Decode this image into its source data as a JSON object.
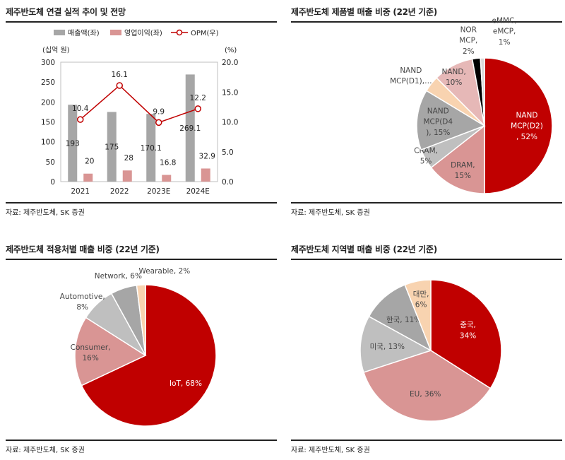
{
  "source_label": "자료: 제주반도체, SK 증권",
  "colors": {
    "bar_gray": "#a6a6a6",
    "bar_pink": "#d99594",
    "line_red": "#c00000",
    "red": "#c00000",
    "pink": "#d99594",
    "gray_dark": "#a6a6a6",
    "gray_light": "#bfbfbf",
    "peach": "#f8d3b0",
    "rose": "#e6b8b7",
    "black": "#000000",
    "light": "#d9d9d9"
  },
  "chart_data": [
    {
      "type": "bar",
      "title": "제주반도체 연결 실적 추이 및 전망",
      "categories": [
        "2021",
        "2022",
        "2023E",
        "2024E"
      ],
      "series": [
        {
          "name": "매출액(좌)",
          "values": [
            193,
            175,
            170.1,
            269.1
          ],
          "axis": "left",
          "labels": [
            "193",
            "175",
            "170.1",
            "269.1"
          ]
        },
        {
          "name": "영업이익(좌)",
          "values": [
            20,
            28,
            16.8,
            32.9
          ],
          "axis": "left",
          "labels": [
            "20",
            "28",
            "16.8",
            "32.9"
          ]
        },
        {
          "name": "OPM(우)",
          "type": "line",
          "values": [
            10.4,
            16.1,
            9.9,
            12.2
          ],
          "axis": "right",
          "labels": [
            "10.4",
            "16.1",
            "9.9",
            "12.2"
          ]
        }
      ],
      "left_axis_unit": "(십억 원)",
      "right_axis_unit": "(%)",
      "ylim_left": [
        0,
        300
      ],
      "ylim_right": [
        0,
        20
      ],
      "left_ticks": [
        "0",
        "50",
        "100",
        "150",
        "200",
        "250",
        "300"
      ],
      "right_ticks": [
        "0.0",
        "5.0",
        "10.0",
        "15.0",
        "20.0"
      ],
      "legend_position": "top"
    },
    {
      "type": "pie",
      "title": "제주반도체 제품별 매출 비중 (22년 기준)",
      "slices": [
        {
          "label": "NAND MCP(D2), 52%",
          "value": 52,
          "color_key": "red",
          "label_lines": [
            "NAND",
            "MCP(D2)",
            ", 52%"
          ]
        },
        {
          "label": "DRAM, 15%",
          "value": 15,
          "color_key": "pink",
          "label_lines": [
            "DRAM,",
            "15%"
          ]
        },
        {
          "label": "CRAM, 5%",
          "value": 5,
          "color_key": "gray_light",
          "label_lines": [
            "CRAM,",
            "5%"
          ]
        },
        {
          "label": "NAND MCP(D4), 15%",
          "value": 15,
          "color_key": "gray_dark",
          "label_lines": [
            "NAND",
            "MCP(D4",
            "), 15%"
          ]
        },
        {
          "label": "NAND MCP(D1),…",
          "value": 4,
          "color_key": "peach",
          "label_lines": [
            "NAND",
            "MCP(D1),…"
          ]
        },
        {
          "label": "NAND, 10%",
          "value": 10,
          "color_key": "rose",
          "label_lines": [
            "NAND,",
            "10%"
          ]
        },
        {
          "label": "NOR MCP, 2%",
          "value": 2,
          "color_key": "black",
          "label_lines": [
            "NOR",
            "MCP,",
            "2%"
          ]
        },
        {
          "label": "eMMC, eMCP, 1%",
          "value": 1,
          "color_key": "light",
          "label_lines": [
            "eMMC,",
            "eMCP,",
            "1%"
          ]
        }
      ]
    },
    {
      "type": "pie",
      "title": "제주반도체 적용처별 매출 비중 (22년 기준)",
      "slices": [
        {
          "label": "IoT, 68%",
          "value": 68,
          "color_key": "red",
          "label_lines": [
            "IoT, 68%"
          ]
        },
        {
          "label": "Consumer, 16%",
          "value": 16,
          "color_key": "pink",
          "label_lines": [
            "Consumer,",
            "16%"
          ]
        },
        {
          "label": "Automotive, 8%",
          "value": 8,
          "color_key": "gray_light",
          "label_lines": [
            "Automotive,",
            "8%"
          ]
        },
        {
          "label": "Network, 6%",
          "value": 6,
          "color_key": "gray_dark",
          "label_lines": [
            "Network, 6%"
          ]
        },
        {
          "label": "Wearable, 2%",
          "value": 2,
          "color_key": "peach",
          "label_lines": [
            "Wearable, 2%"
          ]
        }
      ]
    },
    {
      "type": "pie",
      "title": "제주반도체 지역별 매출 비중 (22년 기준)",
      "slices": [
        {
          "label": "중국, 34%",
          "value": 34,
          "color_key": "red",
          "label_lines": [
            "중국,",
            "34%"
          ]
        },
        {
          "label": "EU, 36%",
          "value": 36,
          "color_key": "pink",
          "label_lines": [
            "EU, 36%"
          ]
        },
        {
          "label": "미국, 13%",
          "value": 13,
          "color_key": "gray_light",
          "label_lines": [
            "미국, 13%"
          ]
        },
        {
          "label": "한국, 11%",
          "value": 11,
          "color_key": "gray_dark",
          "label_lines": [
            "한국, 11%"
          ]
        },
        {
          "label": "대만, 6%",
          "value": 6,
          "color_key": "peach",
          "label_lines": [
            "대만,",
            "6%"
          ]
        }
      ]
    }
  ]
}
